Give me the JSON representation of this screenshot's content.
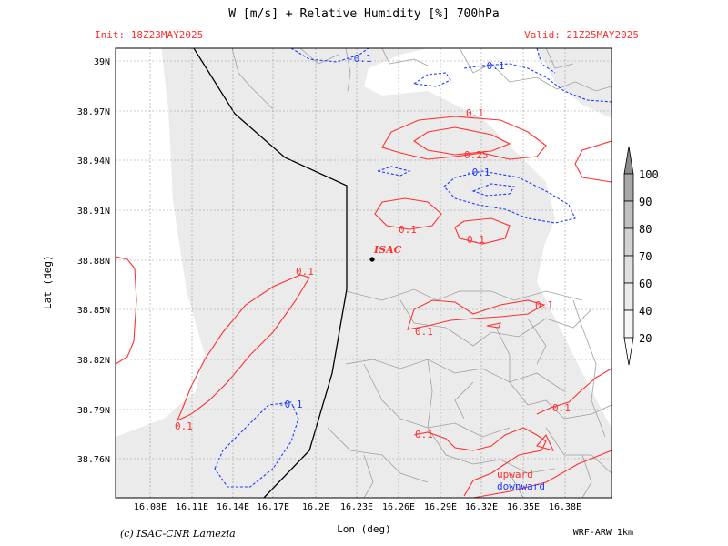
{
  "header": {
    "title": "W [m/s] + Relative Humidity [%] 700hPa",
    "init": "Init: 18Z23MAY2025",
    "valid": "Valid: 21Z25MAY2025"
  },
  "axes": {
    "xlabel": "Lon (deg)",
    "ylabel": "Lat (deg)",
    "x_ticks": [
      "16.08E",
      "16.11E",
      "16.14E",
      "16.17E",
      "16.2E",
      "16.23E",
      "16.26E",
      "16.29E",
      "16.32E",
      "16.35E",
      "16.38E"
    ],
    "y_ticks": [
      "39N",
      "38.97N",
      "38.94N",
      "38.91N",
      "38.88N",
      "38.85N",
      "38.82N",
      "38.79N",
      "38.76N"
    ]
  },
  "colorbar": {
    "labels": [
      "100",
      "90",
      "80",
      "70",
      "60",
      "40",
      "20"
    ]
  },
  "map": {
    "station_label": "ISAC",
    "contour_labels_red": [
      "0.1",
      "0.25",
      "0.1",
      "0.1",
      "0.1",
      "0.1",
      "0.1",
      "0.1",
      "0.1"
    ],
    "contour_labels_blue": [
      "-0.1",
      "-0.1",
      "-0.1",
      "-0.1"
    ],
    "legend_upward": "upward",
    "legend_downward": "downward",
    "colors": {
      "upward": "#ff3030",
      "downward": "#1e3cff",
      "humidity_fill": "#ebebeb"
    }
  },
  "footer": {
    "credit": "(c) ISAC-CNR Lamezia",
    "model": "WRF-ARW 1km"
  }
}
